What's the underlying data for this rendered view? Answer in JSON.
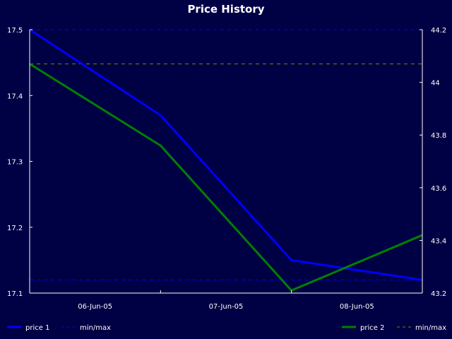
{
  "chart_data": {
    "type": "line",
    "title": "Price History",
    "x_ticks": [
      "06-Jun-05",
      "07-Jun-05",
      "08-Jun-05"
    ],
    "x": [
      "05-Jun-05 12:00",
      "06-Jun-05 12:00",
      "07-Jun-05 12:00",
      "08-Jun-05 12:00"
    ],
    "y_left": {
      "ylim": [
        17.1,
        17.5
      ],
      "ticks": [
        "17.5",
        "17.4",
        "17.3",
        "17.2",
        "17.1"
      ]
    },
    "y_right": {
      "ylim": [
        43.2,
        44.2
      ],
      "ticks": [
        "44.2",
        "44",
        "43.8",
        "43.6",
        "43.4",
        "43.2"
      ]
    },
    "series": [
      {
        "name": "price 1",
        "axis": "left",
        "color": "#0000ff",
        "values": [
          17.5,
          17.37,
          17.15,
          17.12
        ]
      },
      {
        "name": "price 2",
        "axis": "right",
        "color": "#008000",
        "values": [
          44.07,
          43.76,
          43.21,
          43.42
        ]
      }
    ],
    "minmax_lines": [
      {
        "name": "min/max",
        "axis": "left",
        "color": "#0000ff",
        "values": [
          17.5,
          17.12
        ]
      },
      {
        "name": "min/max",
        "axis": "right",
        "color": "#808000",
        "values": [
          44.07
        ]
      }
    ],
    "legend": {
      "left": [
        {
          "label": "price 1",
          "color": "#0000ff",
          "style": "solid"
        },
        {
          "label": "min/max",
          "color": "#0000ff",
          "style": "dashed"
        }
      ],
      "right": [
        {
          "label": "price 2",
          "color": "#008000",
          "style": "solid"
        },
        {
          "label": "min/max",
          "color": "#808000",
          "style": "dashed"
        }
      ]
    },
    "background": "#000044",
    "axis_color": "#ffffff",
    "grid": false
  }
}
